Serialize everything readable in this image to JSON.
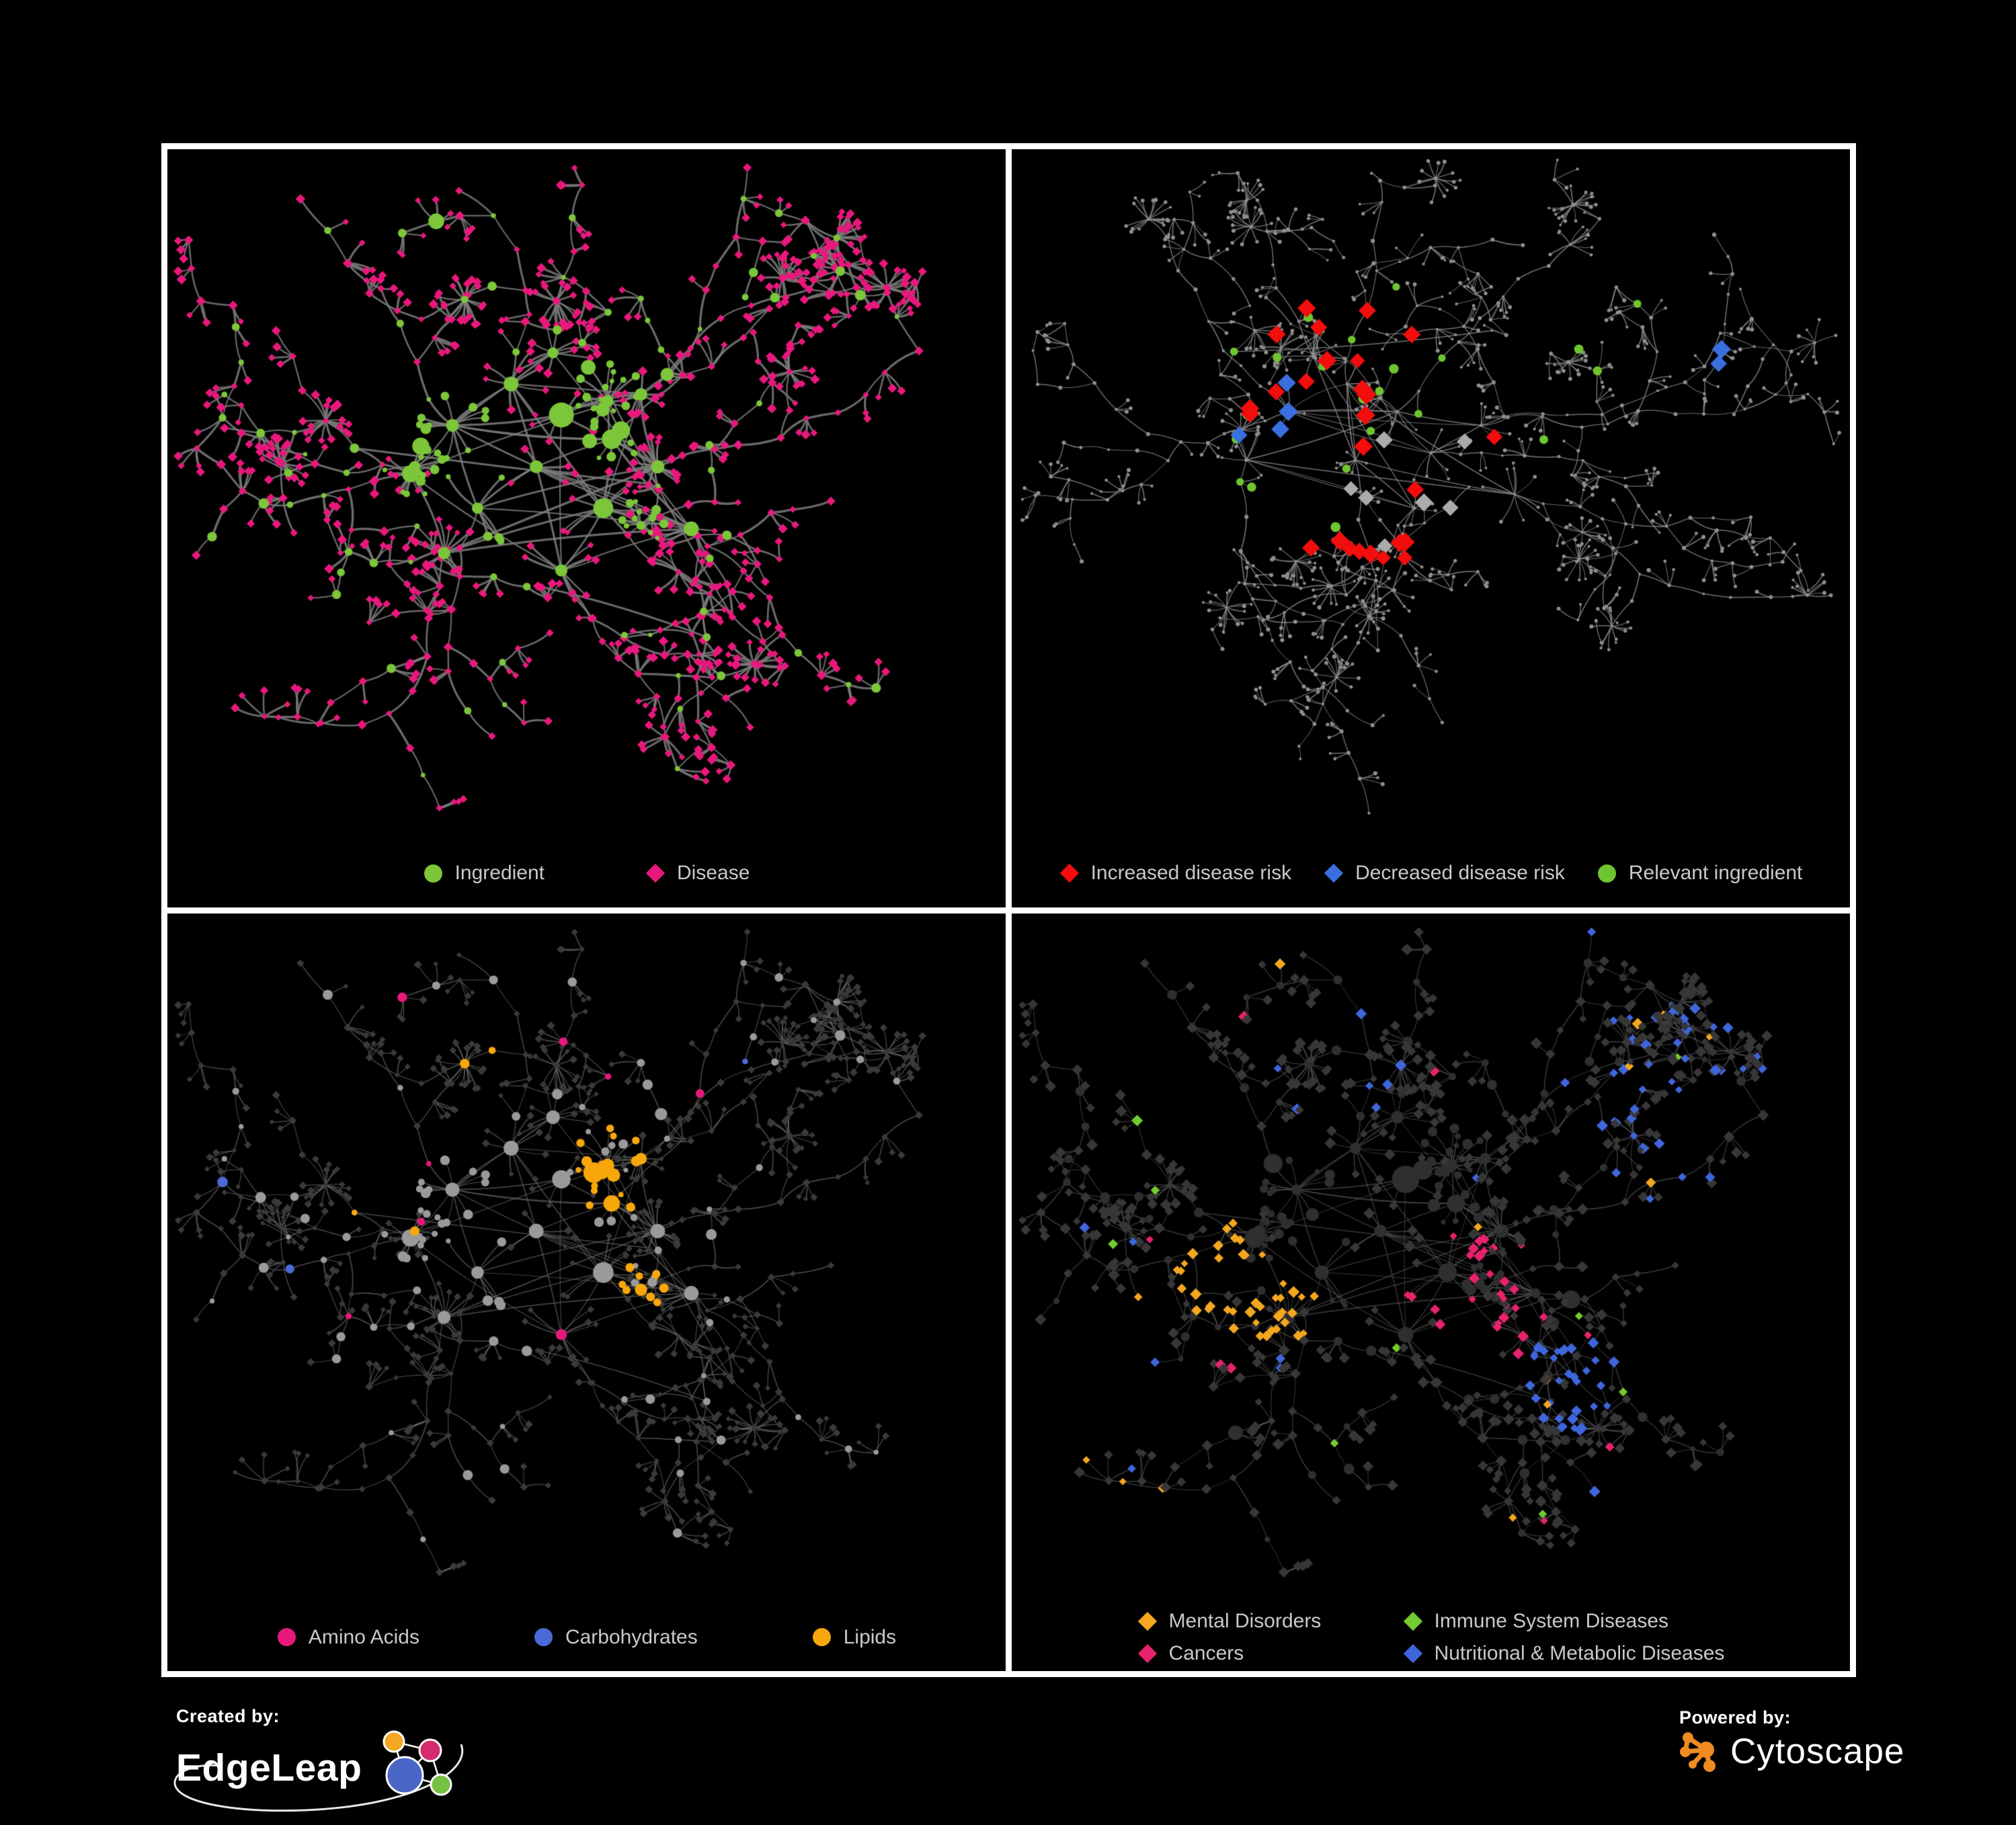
{
  "page": {
    "background": "#000000",
    "frame_color": "#ffffff",
    "panel_background": "#000000",
    "legend_text_color": "#c9c9c9"
  },
  "panels": [
    {
      "id": "ingredient-disease",
      "legend_layout": "row1",
      "legend": [
        {
          "label": "Ingredient",
          "shape": "circle",
          "color": "#7CC639"
        },
        {
          "label": "Disease",
          "shape": "diamond",
          "color": "#E8187C"
        }
      ],
      "style": {
        "edge": "#7C7C7C",
        "circle": "#7CC639",
        "diamond": "#E8187C"
      }
    },
    {
      "id": "disease-risk",
      "legend_layout": "row2",
      "legend": [
        {
          "label": "Increased disease risk",
          "shape": "diamond",
          "color": "#F30D0D"
        },
        {
          "label": "Decreased disease risk",
          "shape": "diamond",
          "color": "#3A6FE0"
        },
        {
          "label": "Relevant ingredient",
          "shape": "circle",
          "color": "#6FC52F"
        }
      ],
      "style": {
        "edge": "#8C8C8C",
        "dot": "#8F8F8F",
        "increased": "#F30D0D",
        "decreased": "#3A6FE0",
        "neutral": "#ABABAB",
        "ingredient": "#6FC52F"
      }
    },
    {
      "id": "macronutrients",
      "legend_layout": "row3",
      "legend": [
        {
          "label": "Amino Acids",
          "shape": "circle",
          "color": "#E8197B"
        },
        {
          "label": "Carbohydrates",
          "shape": "circle",
          "color": "#4A6AD8"
        },
        {
          "label": "Lipids",
          "shape": "circle",
          "color": "#F8A70B"
        }
      ],
      "style": {
        "edge": "#7A7A7A",
        "circle": "#9A9A9A",
        "diamond": "#3A3A3A",
        "amino": "#E8197B",
        "carbs": "#4A6AD8",
        "lipids": "#F8A70B"
      }
    },
    {
      "id": "disease-categories",
      "legend_layout": "grid4",
      "legend": [
        {
          "label": "Mental Disorders",
          "shape": "diamond",
          "color": "#F4A71F"
        },
        {
          "label": "Immune System Diseases",
          "shape": "diamond",
          "color": "#74CB2F"
        },
        {
          "label": "Cancers",
          "shape": "diamond",
          "color": "#E8226F"
        },
        {
          "label": "Nutritional & Metabolic Diseases",
          "shape": "diamond",
          "color": "#3F66DB"
        }
      ],
      "style": {
        "edge": "#6E6E6E",
        "circle": "#2F2F2F",
        "diamond": "#373737",
        "mental": "#F4A71F",
        "immune": "#74CB2F",
        "cancers": "#E8226F",
        "nutritional": "#3F66DB"
      }
    }
  ],
  "footer": {
    "created_by_label": "Created by:",
    "created_by_name": "EdgeLeap",
    "powered_by_label": "Powered by:",
    "powered_by_name": "Cytoscape",
    "edgeleap_logo_colors": {
      "orange": "#F5A623",
      "pink": "#D62A6E",
      "blue": "#4A67C8",
      "green": "#76C043"
    },
    "cytoscape_logo_color": "#EF8B22"
  }
}
